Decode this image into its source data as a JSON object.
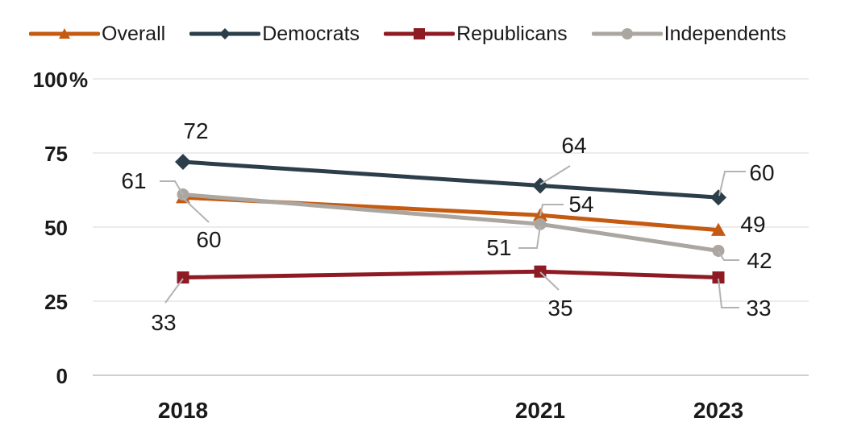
{
  "chart_data": {
    "type": "line",
    "x": [
      "2018",
      "2021",
      "2023"
    ],
    "ylim": [
      0,
      100
    ],
    "y_ticks": [
      0,
      25,
      50,
      75,
      100
    ],
    "y_tick_labels": [
      "0",
      "25",
      "50",
      "75",
      "100"
    ],
    "y_unit": "%",
    "grid": true,
    "legend_position": "top",
    "series": [
      {
        "name": "Overall",
        "values": [
          60,
          54,
          49
        ],
        "color": "#c55a11",
        "marker": "triangle"
      },
      {
        "name": "Democrats",
        "values": [
          72,
          64,
          60
        ],
        "color": "#2b3e4a",
        "marker": "diamond"
      },
      {
        "name": "Republicans",
        "values": [
          33,
          35,
          33
        ],
        "color": "#8e1b24",
        "marker": "square"
      },
      {
        "name": "Independents",
        "values": [
          61,
          51,
          42
        ],
        "color": "#aba6a0",
        "marker": "circle"
      }
    ]
  }
}
